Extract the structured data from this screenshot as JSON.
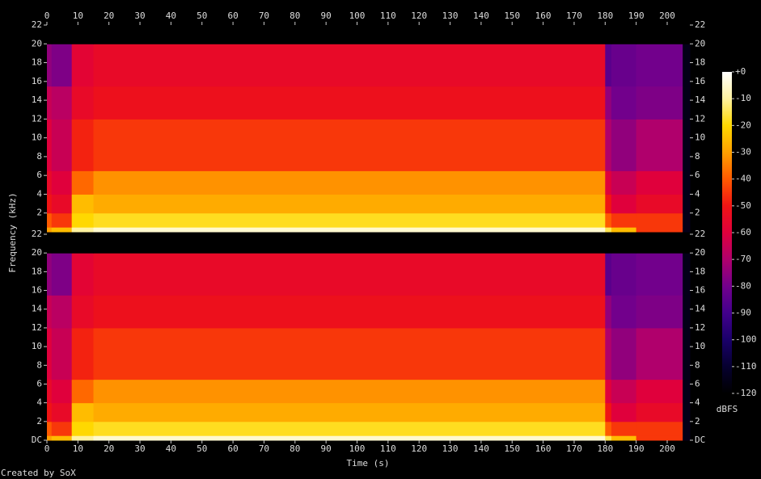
{
  "chart_data": {
    "type": "spectrogram",
    "x_label": "Time (s)",
    "y_label": "Frequency (kHz)",
    "colorbar_label": "dBFS",
    "footer": "Created by SoX",
    "xlim": [
      0,
      207.3
    ],
    "xticks": [
      0,
      10,
      20,
      30,
      40,
      50,
      60,
      70,
      80,
      90,
      100,
      110,
      120,
      130,
      140,
      150,
      160,
      170,
      180,
      190,
      200
    ],
    "ylim": [
      0,
      22
    ],
    "time_bins": [
      0,
      1.5,
      8,
      15,
      180,
      182,
      190,
      205,
      207.3
    ],
    "freq_bins": [
      0,
      0.5,
      2,
      4,
      6.5,
      12,
      15.5,
      20,
      22
    ],
    "channels": [
      {
        "yticks": [
          2,
          4,
          6,
          8,
          10,
          12,
          14,
          16,
          18,
          20,
          22
        ],
        "values": [
          [
            -30,
            -25,
            -10,
            -5,
            -15,
            -25,
            -45,
            -115
          ],
          [
            -40,
            -45,
            -20,
            -18,
            -40,
            -45,
            -45,
            -115
          ],
          [
            -50,
            -55,
            -25,
            -28,
            -50,
            -60,
            -55,
            -115
          ],
          [
            -55,
            -60,
            -38,
            -32,
            -60,
            -65,
            -60,
            -115
          ],
          [
            -60,
            -65,
            -48,
            -45,
            -70,
            -75,
            -70,
            -115
          ],
          [
            -65,
            -68,
            -55,
            -52,
            -75,
            -80,
            -78,
            -115
          ],
          [
            -75,
            -78,
            -58,
            -55,
            -85,
            -82,
            -80,
            -115
          ],
          [
            -120,
            -120,
            -120,
            -120,
            -120,
            -120,
            -120,
            -120
          ]
        ]
      },
      {
        "yticks": [
          {
            "value": 0,
            "label": "DC"
          },
          2,
          4,
          6,
          8,
          10,
          12,
          14,
          16,
          18,
          20,
          22
        ],
        "values": [
          [
            -30,
            -25,
            -10,
            -5,
            -15,
            -25,
            -45,
            -115
          ],
          [
            -40,
            -45,
            -20,
            -18,
            -40,
            -45,
            -45,
            -115
          ],
          [
            -50,
            -55,
            -25,
            -28,
            -50,
            -60,
            -55,
            -115
          ],
          [
            -55,
            -60,
            -38,
            -32,
            -60,
            -65,
            -60,
            -115
          ],
          [
            -60,
            -65,
            -48,
            -45,
            -70,
            -75,
            -70,
            -115
          ],
          [
            -65,
            -68,
            -55,
            -52,
            -75,
            -80,
            -78,
            -115
          ],
          [
            -75,
            -78,
            -58,
            -55,
            -85,
            -82,
            -80,
            -115
          ],
          [
            -120,
            -120,
            -120,
            -120,
            -120,
            -120,
            -120,
            -120
          ]
        ]
      }
    ],
    "colorbar": {
      "lim": [
        -120,
        0
      ],
      "ticks": [
        {
          "value": 0,
          "label": "+0"
        },
        -10,
        -20,
        -30,
        -40,
        -50,
        -60,
        -70,
        -80,
        -90,
        -100,
        -110,
        -120
      ]
    },
    "colormap": [
      {
        "value": 0,
        "color": "#ffffff"
      },
      {
        "value": -10,
        "color": "#fff2a0"
      },
      {
        "value": -20,
        "color": "#ffd800"
      },
      {
        "value": -30,
        "color": "#ffa000"
      },
      {
        "value": -40,
        "color": "#ff5a00"
      },
      {
        "value": -50,
        "color": "#f01414"
      },
      {
        "value": -60,
        "color": "#e0003c"
      },
      {
        "value": -70,
        "color": "#b0006c"
      },
      {
        "value": -80,
        "color": "#72008c"
      },
      {
        "value": -90,
        "color": "#42008c"
      },
      {
        "value": -100,
        "color": "#1a006a"
      },
      {
        "value": -110,
        "color": "#060030"
      },
      {
        "value": -120,
        "color": "#000000"
      }
    ]
  }
}
